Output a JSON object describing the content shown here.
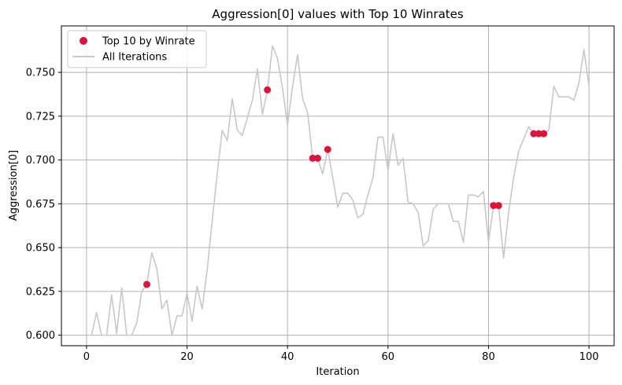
{
  "chart_data": {
    "type": "line",
    "title": "Aggression[0] values with Top 10 Winrates",
    "xlabel": "Iteration",
    "ylabel": "Aggression[0]",
    "xlim": [
      -5,
      105
    ],
    "ylim": [
      0.594,
      0.7765
    ],
    "x_ticks": [
      0,
      20,
      40,
      60,
      80,
      100
    ],
    "y_ticks": [
      0.6,
      0.625,
      0.65,
      0.675,
      0.7,
      0.725,
      0.75
    ],
    "x_tick_labels": [
      "0",
      "20",
      "40",
      "60",
      "80",
      "100"
    ],
    "y_tick_labels": [
      "0.600",
      "0.625",
      "0.650",
      "0.675",
      "0.700",
      "0.725",
      "0.750"
    ],
    "grid": true,
    "legend_position": "top-left",
    "series": [
      {
        "name": "All Iterations",
        "kind": "line",
        "color": "#c8c8c8",
        "x": [
          0,
          1,
          2,
          3,
          4,
          5,
          6,
          7,
          8,
          9,
          10,
          11,
          12,
          13,
          14,
          15,
          16,
          17,
          18,
          19,
          20,
          21,
          22,
          23,
          24,
          25,
          26,
          27,
          28,
          29,
          30,
          31,
          32,
          33,
          34,
          35,
          36,
          37,
          38,
          39,
          40,
          41,
          42,
          43,
          44,
          45,
          46,
          47,
          48,
          49,
          50,
          51,
          52,
          53,
          54,
          55,
          56,
          57,
          58,
          59,
          60,
          61,
          62,
          63,
          64,
          65,
          66,
          67,
          68,
          69,
          70,
          71,
          72,
          73,
          74,
          75,
          76,
          77,
          78,
          79,
          80,
          81,
          82,
          83,
          84,
          85,
          86,
          87,
          88,
          89,
          90,
          91,
          92,
          93,
          94,
          95,
          96,
          97,
          98,
          99,
          100
        ],
        "y": [
          0.6,
          0.6,
          0.613,
          0.6,
          0.6,
          0.623,
          0.601,
          0.627,
          0.6,
          0.6,
          0.607,
          0.625,
          0.629,
          0.647,
          0.638,
          0.615,
          0.62,
          0.6,
          0.611,
          0.611,
          0.624,
          0.608,
          0.628,
          0.615,
          0.637,
          0.665,
          0.692,
          0.717,
          0.711,
          0.735,
          0.717,
          0.714,
          0.724,
          0.734,
          0.752,
          0.726,
          0.74,
          0.765,
          0.758,
          0.741,
          0.72,
          0.742,
          0.76,
          0.735,
          0.727,
          0.701,
          0.701,
          0.692,
          0.706,
          0.69,
          0.673,
          0.681,
          0.681,
          0.677,
          0.667,
          0.669,
          0.68,
          0.69,
          0.713,
          0.713,
          0.694,
          0.715,
          0.697,
          0.701,
          0.676,
          0.675,
          0.67,
          0.651,
          0.654,
          0.672,
          0.675,
          0.675,
          0.675,
          0.665,
          0.665,
          0.653,
          0.68,
          0.68,
          0.679,
          0.682,
          0.653,
          0.674,
          0.674,
          0.644,
          0.67,
          0.69,
          0.705,
          0.712,
          0.719,
          0.715,
          0.715,
          0.715,
          0.717,
          0.742,
          0.736,
          0.736,
          0.736,
          0.734,
          0.744,
          0.763,
          0.742
        ]
      },
      {
        "name": "Top 10 by Winrate",
        "kind": "scatter",
        "color": "#dc143c",
        "x": [
          12,
          36,
          45,
          46,
          48,
          81,
          82,
          89,
          90,
          91
        ],
        "y": [
          0.629,
          0.74,
          0.701,
          0.701,
          0.706,
          0.674,
          0.674,
          0.715,
          0.715,
          0.715
        ]
      }
    ]
  }
}
